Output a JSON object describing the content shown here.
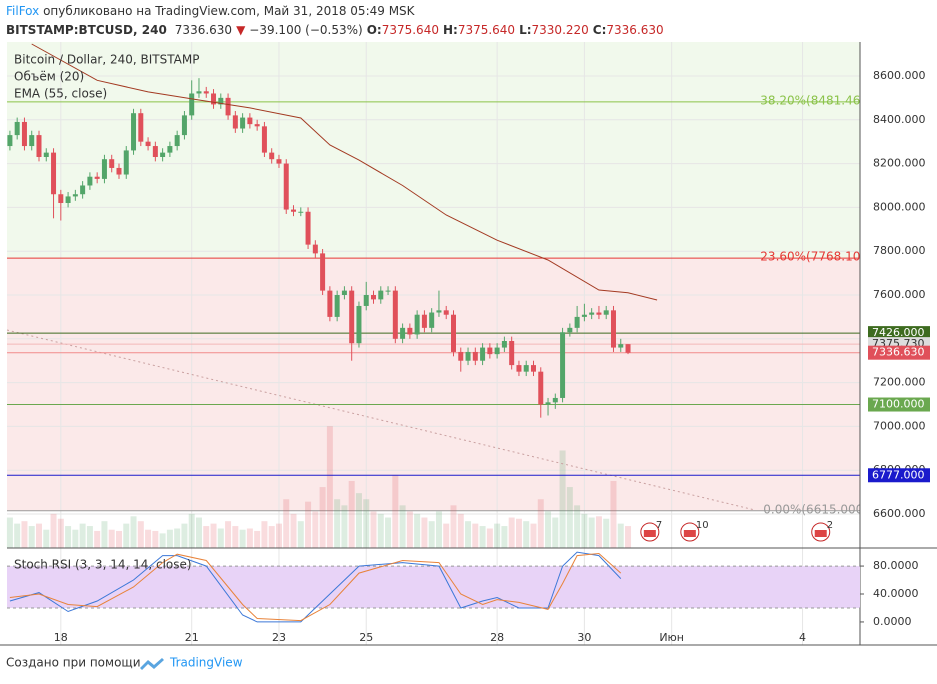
{
  "header": {
    "author": "FilFox",
    "published": " опубликовано на TradingView.com, Май 31, 2018 05:49 MSK",
    "symbol": "BITSTAMP:BTCUSD, 240",
    "last": "7336.630",
    "arrow": "▼",
    "change": "−39.100 (−0.53%)",
    "o": "O:",
    "ov": "7375.640",
    "h": "H:",
    "hv": "7375.640",
    "l": "L:",
    "lv": "7330.220",
    "c": "C:",
    "cv": "7336.630"
  },
  "footer": {
    "made": "Создано при помощи",
    "brand": "TradingView"
  },
  "chart_data": [
    {
      "type": "candlestick",
      "title": "Bitcoin / Dollar, 240, BITSTAMP",
      "volume_label": "Объём (20)",
      "ema_label": "EMA (55, close)",
      "up_color": "#53a569",
      "down_color": "#e0505a",
      "ohlc": [
        [
          8280,
          8350,
          8260,
          8330
        ],
        [
          8330,
          8410,
          8310,
          8390
        ],
        [
          8390,
          8410,
          8260,
          8280
        ],
        [
          8280,
          8350,
          8260,
          8330
        ],
        [
          8330,
          8350,
          8210,
          8230
        ],
        [
          8230,
          8270,
          8210,
          8250
        ],
        [
          8250,
          8270,
          7950,
          8060
        ],
        [
          8060,
          8080,
          7940,
          8020
        ],
        [
          8020,
          8070,
          8000,
          8050
        ],
        [
          8050,
          8080,
          8030,
          8060
        ],
        [
          8060,
          8120,
          8040,
          8100
        ],
        [
          8100,
          8160,
          8080,
          8140
        ],
        [
          8140,
          8160,
          8110,
          8130
        ],
        [
          8130,
          8240,
          8110,
          8220
        ],
        [
          8220,
          8240,
          8160,
          8180
        ],
        [
          8180,
          8200,
          8130,
          8150
        ],
        [
          8150,
          8280,
          8130,
          8260
        ],
        [
          8260,
          8450,
          8240,
          8430
        ],
        [
          8430,
          8450,
          8280,
          8300
        ],
        [
          8300,
          8320,
          8260,
          8280
        ],
        [
          8280,
          8300,
          8210,
          8230
        ],
        [
          8230,
          8270,
          8210,
          8250
        ],
        [
          8250,
          8300,
          8230,
          8280
        ],
        [
          8280,
          8350,
          8260,
          8330
        ],
        [
          8330,
          8440,
          8310,
          8420
        ],
        [
          8420,
          8580,
          8400,
          8520
        ],
        [
          8520,
          8590,
          8500,
          8530
        ],
        [
          8530,
          8550,
          8500,
          8520
        ],
        [
          8520,
          8540,
          8450,
          8470
        ],
        [
          8470,
          8520,
          8450,
          8500
        ],
        [
          8500,
          8520,
          8400,
          8420
        ],
        [
          8420,
          8440,
          8340,
          8360
        ],
        [
          8360,
          8430,
          8340,
          8410
        ],
        [
          8410,
          8430,
          8360,
          8380
        ],
        [
          8380,
          8400,
          8350,
          8370
        ],
        [
          8370,
          8390,
          8230,
          8250
        ],
        [
          8250,
          8270,
          8200,
          8220
        ],
        [
          8220,
          8240,
          8180,
          8200
        ],
        [
          8200,
          8220,
          7970,
          7990
        ],
        [
          7990,
          8010,
          7960,
          7980
        ],
        [
          7980,
          8000,
          7960,
          7980
        ],
        [
          7980,
          8000,
          7810,
          7830
        ],
        [
          7830,
          7850,
          7770,
          7790
        ],
        [
          7790,
          7810,
          7600,
          7620
        ],
        [
          7620,
          7640,
          7480,
          7500
        ],
        [
          7500,
          7620,
          7480,
          7600
        ],
        [
          7600,
          7640,
          7580,
          7620
        ],
        [
          7620,
          7640,
          7300,
          7380
        ],
        [
          7380,
          7570,
          7360,
          7550
        ],
        [
          7550,
          7660,
          7530,
          7600
        ],
        [
          7600,
          7620,
          7560,
          7580
        ],
        [
          7580,
          7640,
          7560,
          7620
        ],
        [
          7620,
          7640,
          7600,
          7620
        ],
        [
          7620,
          7640,
          7380,
          7400
        ],
        [
          7400,
          7470,
          7380,
          7450
        ],
        [
          7450,
          7470,
          7400,
          7420
        ],
        [
          7420,
          7530,
          7400,
          7510
        ],
        [
          7510,
          7530,
          7430,
          7450
        ],
        [
          7450,
          7540,
          7430,
          7520
        ],
        [
          7520,
          7620,
          7500,
          7530
        ],
        [
          7530,
          7550,
          7490,
          7510
        ],
        [
          7510,
          7530,
          7320,
          7340
        ],
        [
          7340,
          7360,
          7250,
          7300
        ],
        [
          7300,
          7360,
          7280,
          7340
        ],
        [
          7340,
          7360,
          7280,
          7300
        ],
        [
          7300,
          7380,
          7280,
          7360
        ],
        [
          7360,
          7380,
          7310,
          7330
        ],
        [
          7330,
          7380,
          7310,
          7360
        ],
        [
          7360,
          7410,
          7340,
          7390
        ],
        [
          7390,
          7410,
          7260,
          7280
        ],
        [
          7280,
          7300,
          7230,
          7250
        ],
        [
          7250,
          7300,
          7230,
          7280
        ],
        [
          7280,
          7300,
          7230,
          7250
        ],
        [
          7250,
          7270,
          7040,
          7100
        ],
        [
          7100,
          7130,
          7050,
          7110
        ],
        [
          7110,
          7150,
          7080,
          7130
        ],
        [
          7130,
          7450,
          7110,
          7430
        ],
        [
          7430,
          7470,
          7410,
          7450
        ],
        [
          7450,
          7550,
          7430,
          7500
        ],
        [
          7500,
          7560,
          7480,
          7510
        ],
        [
          7510,
          7540,
          7490,
          7520
        ],
        [
          7520,
          7550,
          7490,
          7510
        ],
        [
          7510,
          7550,
          7490,
          7530
        ],
        [
          7530,
          7550,
          7340,
          7360
        ],
        [
          7360,
          7400,
          7340,
          7375.64
        ],
        [
          7375.64,
          7375.64,
          7330.22,
          7336.63
        ]
      ],
      "volume": {
        "ylim": [
          0,
          105
        ],
        "values": [
          25,
          20,
          22,
          18,
          20,
          15,
          28,
          24,
          18,
          15,
          20,
          18,
          14,
          22,
          15,
          14,
          20,
          26,
          22,
          15,
          14,
          12,
          15,
          16,
          20,
          28,
          25,
          18,
          20,
          16,
          22,
          18,
          15,
          16,
          14,
          22,
          18,
          20,
          40,
          28,
          22,
          38,
          30,
          50,
          100,
          40,
          35,
          55,
          45,
          40,
          30,
          28,
          25,
          60,
          35,
          30,
          28,
          25,
          22,
          30,
          20,
          35,
          28,
          22,
          20,
          18,
          16,
          20,
          18,
          25,
          24,
          22,
          20,
          40,
          30,
          25,
          80,
          50,
          35,
          28,
          25,
          26,
          24,
          55,
          20,
          18
        ]
      },
      "ema": {
        "color": "#a33a22",
        "x": [
          3,
          12,
          19,
          26,
          33,
          40,
          44,
          48,
          54,
          60,
          67,
          74,
          81,
          85,
          89
        ],
        "values": [
          8746,
          8580,
          8527,
          8490,
          8454,
          8408,
          8285,
          8216,
          8100,
          7965,
          7850,
          7760,
          7623,
          7610,
          7577
        ]
      },
      "trendline": {
        "x": [
          -0.4,
          102.5
        ],
        "values": [
          7440,
          6618
        ]
      },
      "fib": [
        {
          "value": 8481.46,
          "label": "38.20%(8481.460",
          "color": "#8bc34a"
        },
        {
          "value": 7768.101,
          "label": "23.60%(7768.101",
          "color": "#e53935"
        },
        {
          "value": 6615,
          "label": "0.00%(6615.000)",
          "color": "#999999"
        }
      ],
      "levels": [
        {
          "value": 7426,
          "label": "7426.000",
          "color": "#3d6b1f",
          "tag_color": "#3d6b1f"
        },
        {
          "value": 7375.73,
          "label": "7375.730",
          "color": "#f2b8b8",
          "tag_color": "#dddddd"
        },
        {
          "value": 7336.63,
          "label": "7336.630",
          "color": "#f28b8b",
          "tag_color": "#e0505a"
        },
        {
          "value": 7100,
          "label": "7100.000",
          "color": "#6aa84f",
          "tag_color": "#6aa84f"
        },
        {
          "value": 6777,
          "label": "6777.000",
          "color": "#1a1acc",
          "tag_color": "#1a1acc"
        }
      ],
      "events": [
        {
          "x": 88,
          "label": "7"
        },
        {
          "x": 93.5,
          "label": "10"
        },
        {
          "x": 111.5,
          "label": "2"
        }
      ],
      "xlim": [
        -0.4,
        116.9
      ],
      "ylim": [
        6445,
        8755
      ],
      "yticks": [
        {
          "value": 8600,
          "label": "8600.000"
        },
        {
          "value": 8400,
          "label": "8400.000"
        },
        {
          "value": 8200,
          "label": "8200.000"
        },
        {
          "value": 8000,
          "label": "8000.000"
        },
        {
          "value": 7800,
          "label": "7800.000"
        },
        {
          "value": 7600,
          "label": "7600.000"
        },
        {
          "value": 7400,
          "label": "7400.000"
        },
        {
          "value": 7200,
          "label": "7200.000"
        },
        {
          "value": 7000,
          "label": "7000.000"
        },
        {
          "value": 6800,
          "label": "6800.000"
        },
        {
          "value": 6600,
          "label": "6600.000"
        }
      ],
      "xticks": [
        {
          "value": 7,
          "label": "18"
        },
        {
          "value": 25,
          "label": "21"
        },
        {
          "value": 37,
          "label": "23"
        },
        {
          "value": 49,
          "label": "25"
        },
        {
          "value": 67,
          "label": "28"
        },
        {
          "value": 79,
          "label": "30"
        },
        {
          "value": 91,
          "label": "Июн"
        },
        {
          "value": 109,
          "label": "4"
        }
      ]
    },
    {
      "type": "line",
      "title": "Stoch RSI (3, 3, 14, 14, close)",
      "band": [
        20,
        80
      ],
      "ylim": [
        -33,
        103
      ],
      "yticks": [
        {
          "value": 80,
          "label": "80.0000"
        },
        {
          "value": 40,
          "label": "40.0000"
        },
        {
          "value": 0,
          "label": "0.0000"
        }
      ],
      "x": [
        0,
        4,
        8,
        12,
        17,
        21,
        23,
        27,
        32,
        34,
        40,
        44,
        48,
        54,
        59,
        62,
        65,
        67,
        70,
        74,
        76,
        78,
        81,
        84
      ],
      "series": [
        {
          "color": "#3c78d8",
          "values": [
            30,
            42,
            15,
            30,
            60,
            95,
            95,
            80,
            10,
            0,
            0,
            40,
            80,
            85,
            80,
            20,
            30,
            35,
            20,
            20,
            80,
            100,
            95,
            62
          ]
        },
        {
          "color": "#e8833a",
          "values": [
            35,
            40,
            25,
            22,
            50,
            85,
            97,
            88,
            25,
            5,
            2,
            25,
            70,
            88,
            85,
            40,
            25,
            32,
            28,
            18,
            55,
            95,
            98,
            70
          ]
        }
      ]
    }
  ]
}
